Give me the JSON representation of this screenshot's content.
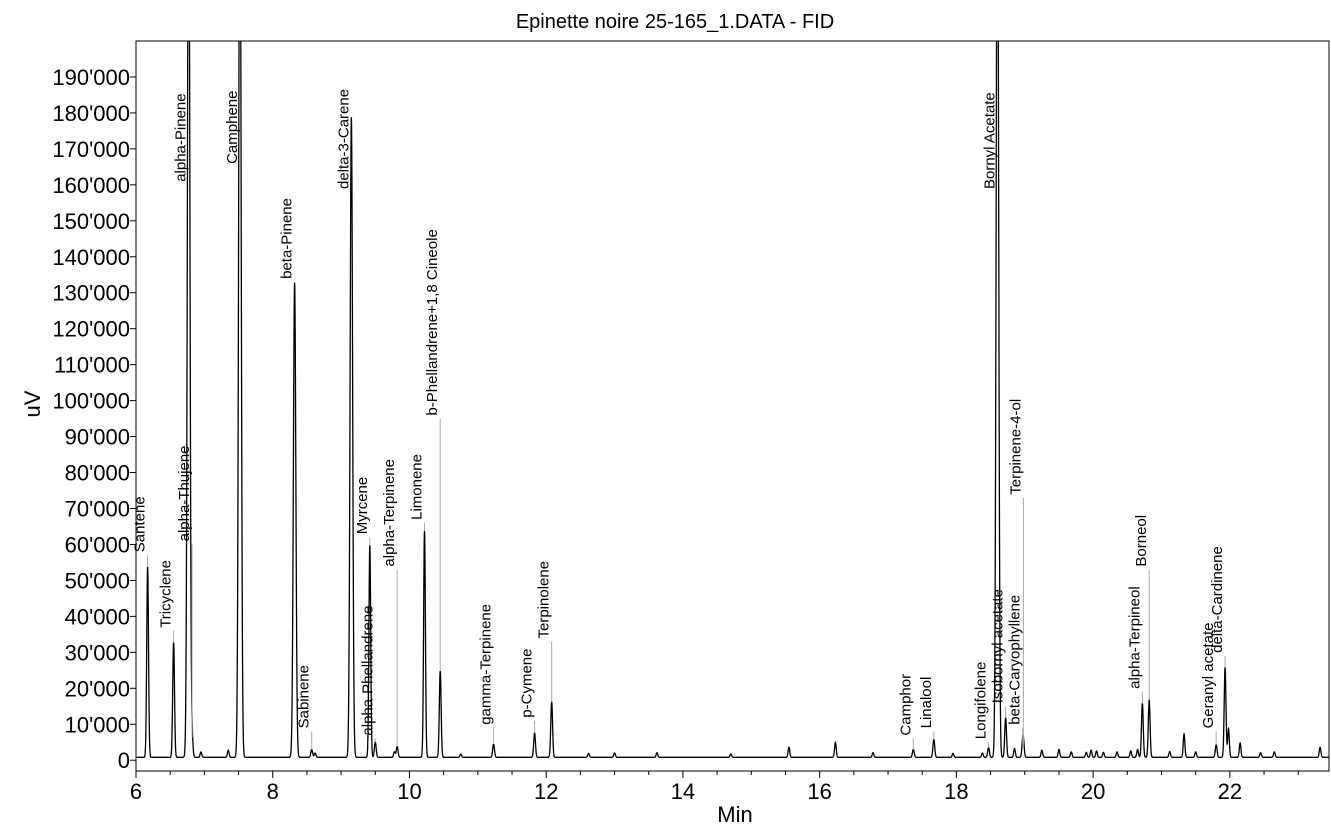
{
  "chart_data": {
    "type": "line",
    "title": "Epinette noire 25-165_1.DATA - FID",
    "xlabel": "Min",
    "ylabel": "uV",
    "xlim": [
      6.0,
      23.45
    ],
    "ylim": [
      -3000,
      200000
    ],
    "x_ticks": [
      6,
      8,
      10,
      12,
      14,
      16,
      18,
      20,
      22
    ],
    "x_tick_labels": [
      "6",
      "8",
      "10",
      "12",
      "14",
      "16",
      "18",
      "20",
      "22"
    ],
    "y_ticks": [
      0,
      10000,
      20000,
      30000,
      40000,
      50000,
      60000,
      70000,
      80000,
      90000,
      100000,
      110000,
      120000,
      130000,
      140000,
      150000,
      160000,
      170000,
      180000,
      190000
    ],
    "y_tick_labels": [
      "0",
      "10'000",
      "20'000",
      "30'000",
      "40'000",
      "50'000",
      "60'000",
      "70'000",
      "80'000",
      "90'000",
      "100'000",
      "110'000",
      "120'000",
      "130'000",
      "140'000",
      "150'000",
      "160'000",
      "170'000",
      "180'000",
      "190'000"
    ],
    "grid": false,
    "baseline": 800,
    "peaks": [
      {
        "rt": 6.17,
        "height": 53000,
        "label": "Santene",
        "label_y": 57000
      },
      {
        "rt": 6.55,
        "height": 32000,
        "label": "Tricyclene",
        "label_y": 36000
      },
      {
        "rt": 6.77,
        "height": 260000,
        "label": "alpha-Pinene",
        "label_y": 160000
      },
      {
        "rt": 6.82,
        "height": 5500,
        "label": "alpha-Thujene",
        "label_y": 60000
      },
      {
        "rt": 7.52,
        "height": 260000,
        "label": "Camphene",
        "label_y": 165000
      },
      {
        "rt": 8.32,
        "height": 132000,
        "label": "beta-Pinene",
        "label_y": 133000
      },
      {
        "rt": 8.57,
        "height": 2200,
        "label": "Sabinene",
        "label_y": 8000
      },
      {
        "rt": 9.15,
        "height": 178000,
        "label": "delta-3-Carene",
        "label_y": 158000
      },
      {
        "rt": 9.42,
        "height": 59000,
        "label": "Myrcene",
        "label_y": 62000
      },
      {
        "rt": 9.5,
        "height": 4200,
        "label": "alpha-Phellandrene",
        "label_y": 6000
      },
      {
        "rt": 9.82,
        "height": 3000,
        "label": "alpha-Terpinene",
        "label_y": 53000
      },
      {
        "rt": 10.22,
        "height": 63000,
        "label": "Limonene",
        "label_y": 66000
      },
      {
        "rt": 10.45,
        "height": 24000,
        "label": "b-Phellandrene+1,8 Cineole",
        "label_y": 95000
      },
      {
        "rt": 11.23,
        "height": 3700,
        "label": "gamma-Terpinene",
        "label_y": 9000
      },
      {
        "rt": 11.83,
        "height": 6800,
        "label": "p-Cymene",
        "label_y": 11000
      },
      {
        "rt": 12.08,
        "height": 15500,
        "label": "Terpinolene",
        "label_y": 33000
      },
      {
        "rt": 17.37,
        "height": 2200,
        "label": "Camphor",
        "label_y": 6000
      },
      {
        "rt": 17.67,
        "height": 5000,
        "label": "Linalool",
        "label_y": 8000
      },
      {
        "rt": 18.47,
        "height": 2700,
        "label": "Longifolene",
        "label_y": 5000
      },
      {
        "rt": 18.6,
        "height": 260000,
        "label": "Bornyl Acetate",
        "label_y": 158000
      },
      {
        "rt": 18.72,
        "height": 11000,
        "label": "Isobornyl acetate",
        "label_y": 15000
      },
      {
        "rt": 18.98,
        "height": 3200,
        "label": "Terpinene-4-ol",
        "label_y": 73000
      },
      {
        "rt": 18.97,
        "height": 3500,
        "label": "beta-Caryophyllene",
        "label_y": 9000
      },
      {
        "rt": 20.72,
        "height": 15000,
        "label": "alpha-Terpineol",
        "label_y": 19000
      },
      {
        "rt": 20.82,
        "height": 16000,
        "label": "Borneol",
        "label_y": 53000
      },
      {
        "rt": 21.8,
        "height": 3500,
        "label": "Geranyl acetate",
        "label_y": 8000
      },
      {
        "rt": 21.93,
        "height": 25000,
        "label": "delta-Cardinene",
        "label_y": 29000
      }
    ],
    "minor_peaks": [
      {
        "rt": 6.95,
        "height": 1500
      },
      {
        "rt": 7.35,
        "height": 2000
      },
      {
        "rt": 8.62,
        "height": 1200
      },
      {
        "rt": 9.78,
        "height": 1500
      },
      {
        "rt": 10.75,
        "height": 900
      },
      {
        "rt": 12.62,
        "height": 1100
      },
      {
        "rt": 13.0,
        "height": 1200
      },
      {
        "rt": 13.62,
        "height": 1300
      },
      {
        "rt": 14.7,
        "height": 900
      },
      {
        "rt": 15.55,
        "height": 2800
      },
      {
        "rt": 16.23,
        "height": 4200
      },
      {
        "rt": 16.78,
        "height": 1300
      },
      {
        "rt": 17.95,
        "height": 1100
      },
      {
        "rt": 18.38,
        "height": 1200
      },
      {
        "rt": 18.85,
        "height": 2500
      },
      {
        "rt": 19.25,
        "height": 2000
      },
      {
        "rt": 19.5,
        "height": 2200
      },
      {
        "rt": 19.68,
        "height": 1500
      },
      {
        "rt": 19.9,
        "height": 1400
      },
      {
        "rt": 19.97,
        "height": 2000
      },
      {
        "rt": 20.05,
        "height": 1800
      },
      {
        "rt": 20.15,
        "height": 1400
      },
      {
        "rt": 20.35,
        "height": 1500
      },
      {
        "rt": 20.55,
        "height": 1800
      },
      {
        "rt": 20.65,
        "height": 2200
      },
      {
        "rt": 21.12,
        "height": 1600
      },
      {
        "rt": 21.33,
        "height": 6500
      },
      {
        "rt": 21.5,
        "height": 1500
      },
      {
        "rt": 21.98,
        "height": 8000
      },
      {
        "rt": 22.15,
        "height": 4000
      },
      {
        "rt": 22.45,
        "height": 1300
      },
      {
        "rt": 22.65,
        "height": 1500
      },
      {
        "rt": 23.32,
        "height": 2800
      }
    ]
  }
}
